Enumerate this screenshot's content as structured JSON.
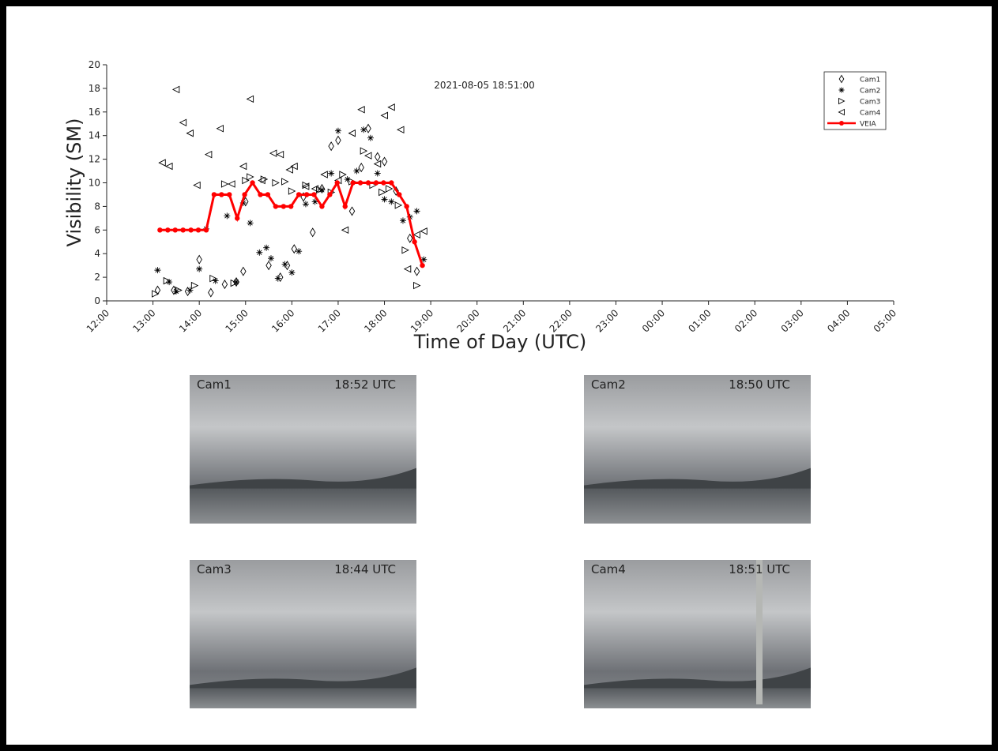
{
  "chart_data": {
    "type": "scatter",
    "annotation": "2021-08-05 18:51:00",
    "xlabel": "Time of Day (UTC)",
    "ylabel": "Visibility (SM)",
    "xlim": [
      12,
      29
    ],
    "ylim": [
      0,
      20
    ],
    "yticks": [
      0,
      2,
      4,
      6,
      8,
      10,
      12,
      14,
      16,
      18,
      20
    ],
    "xticks": [
      {
        "value": 12,
        "label": "12:00"
      },
      {
        "value": 13,
        "label": "13:00"
      },
      {
        "value": 14,
        "label": "14:00"
      },
      {
        "value": 15,
        "label": "15:00"
      },
      {
        "value": 16,
        "label": "16:00"
      },
      {
        "value": 17,
        "label": "17:00"
      },
      {
        "value": 18,
        "label": "18:00"
      },
      {
        "value": 19,
        "label": "19:00"
      },
      {
        "value": 20,
        "label": "20:00"
      },
      {
        "value": 21,
        "label": "21:00"
      },
      {
        "value": 22,
        "label": "22:00"
      },
      {
        "value": 23,
        "label": "23:00"
      },
      {
        "value": 24,
        "label": "00:00"
      },
      {
        "value": 25,
        "label": "01:00"
      },
      {
        "value": 26,
        "label": "02:00"
      },
      {
        "value": 27,
        "label": "03:00"
      },
      {
        "value": 28,
        "label": "04:00"
      },
      {
        "value": 29,
        "label": "05:00"
      }
    ],
    "legend": "upper right",
    "series": [
      {
        "name": "Cam1",
        "type": "scatter",
        "marker": "diamond",
        "color": "#000000",
        "x": [
          13.1,
          13.45,
          13.75,
          14.0,
          14.25,
          14.55,
          14.8,
          14.95,
          15.0,
          15.5,
          15.75,
          15.9,
          16.05,
          16.25,
          16.45,
          16.65,
          16.85,
          17.0,
          17.3,
          17.5,
          17.65,
          17.85,
          18.0,
          18.25,
          18.55,
          18.7
        ],
        "values": [
          0.9,
          0.9,
          0.8,
          3.5,
          0.7,
          1.4,
          1.6,
          2.5,
          8.4,
          3.0,
          2.0,
          3.0,
          4.4,
          8.8,
          5.8,
          9.5,
          13.1,
          13.6,
          7.6,
          11.3,
          14.6,
          12.2,
          11.8,
          9.3,
          5.3,
          2.5
        ]
      },
      {
        "name": "Cam2",
        "type": "scatter",
        "marker": "asterisk",
        "color": "#000000",
        "x": [
          13.1,
          13.35,
          13.5,
          13.8,
          14.0,
          14.15,
          14.35,
          14.6,
          14.8,
          14.95,
          15.1,
          15.3,
          15.45,
          15.55,
          15.7,
          15.85,
          16.0,
          16.15,
          16.3,
          16.5,
          16.65,
          16.85,
          17.0,
          17.2,
          17.4,
          17.55,
          17.7,
          17.85,
          18.0,
          18.15,
          18.4,
          18.55,
          18.7,
          18.85
        ],
        "values": [
          2.6,
          1.6,
          0.8,
          0.9,
          2.7,
          6.1,
          1.7,
          7.2,
          1.6,
          8.3,
          6.6,
          4.1,
          4.5,
          3.6,
          1.9,
          3.1,
          2.4,
          4.2,
          8.2,
          8.4,
          9.4,
          10.8,
          14.4,
          10.3,
          11.0,
          14.5,
          13.8,
          10.8,
          8.6,
          8.4,
          6.8,
          7.1,
          7.6,
          3.5
        ]
      },
      {
        "name": "Cam3",
        "type": "scatter",
        "marker": "triangle-right",
        "color": "#000000",
        "x": [
          13.05,
          13.3,
          13.55,
          13.9,
          14.3,
          14.55,
          14.75,
          15.0,
          15.1,
          15.4,
          15.65,
          15.85,
          16.0,
          16.3,
          16.6,
          16.85,
          17.1,
          17.3,
          17.55,
          17.75,
          17.95,
          18.1,
          18.3,
          18.45,
          18.7
        ],
        "values": [
          0.6,
          1.7,
          0.9,
          1.3,
          1.9,
          9.9,
          1.5,
          10.2,
          10.5,
          10.3,
          10.0,
          10.1,
          9.3,
          9.8,
          9.4,
          9.2,
          10.7,
          10.1,
          12.7,
          9.8,
          9.2,
          9.5,
          8.1,
          4.3,
          1.3
        ]
      },
      {
        "name": "Cam4",
        "type": "scatter",
        "marker": "triangle-left",
        "color": "#000000",
        "x": [
          13.2,
          13.35,
          13.5,
          13.65,
          13.8,
          13.95,
          14.2,
          14.45,
          14.7,
          14.95,
          15.1,
          15.35,
          15.6,
          15.75,
          15.95,
          16.05,
          16.3,
          16.5,
          16.7,
          17.0,
          17.15,
          17.3,
          17.5,
          17.65,
          17.85,
          18.0,
          18.15,
          18.35,
          18.5,
          18.7,
          18.85
        ],
        "values": [
          11.7,
          11.4,
          17.9,
          15.1,
          14.2,
          9.8,
          12.4,
          14.6,
          9.9,
          11.4,
          17.1,
          10.2,
          12.5,
          12.4,
          11.1,
          11.4,
          9.7,
          9.5,
          10.7,
          10.2,
          6.0,
          14.2,
          16.2,
          12.3,
          11.6,
          15.7,
          16.4,
          14.5,
          2.7,
          5.6,
          5.9
        ]
      },
      {
        "name": "VEIA",
        "type": "line",
        "marker": "dot",
        "color": "#ff0000",
        "x": [
          13.15,
          13.32,
          13.48,
          13.65,
          13.82,
          13.98,
          14.15,
          14.32,
          14.48,
          14.65,
          14.82,
          14.98,
          15.15,
          15.32,
          15.48,
          15.65,
          15.82,
          15.98,
          16.15,
          16.32,
          16.48,
          16.65,
          16.82,
          16.98,
          17.15,
          17.32,
          17.48,
          17.65,
          17.82,
          17.98,
          18.15,
          18.32,
          18.48,
          18.65,
          18.82
        ],
        "values": [
          6,
          6,
          6,
          6,
          6,
          6,
          6,
          9,
          9,
          9,
          7,
          9,
          10,
          9,
          9,
          8,
          8,
          8,
          9,
          9,
          9,
          8,
          9,
          10,
          8,
          10,
          10,
          10,
          10,
          10,
          10,
          9,
          8,
          5,
          3
        ]
      }
    ]
  },
  "cameras": [
    {
      "name": "Cam1",
      "time": "18:52 UTC"
    },
    {
      "name": "Cam2",
      "time": "18:50 UTC"
    },
    {
      "name": "Cam3",
      "time": "18:44 UTC"
    },
    {
      "name": "Cam4",
      "time": "18:51 UTC"
    }
  ]
}
